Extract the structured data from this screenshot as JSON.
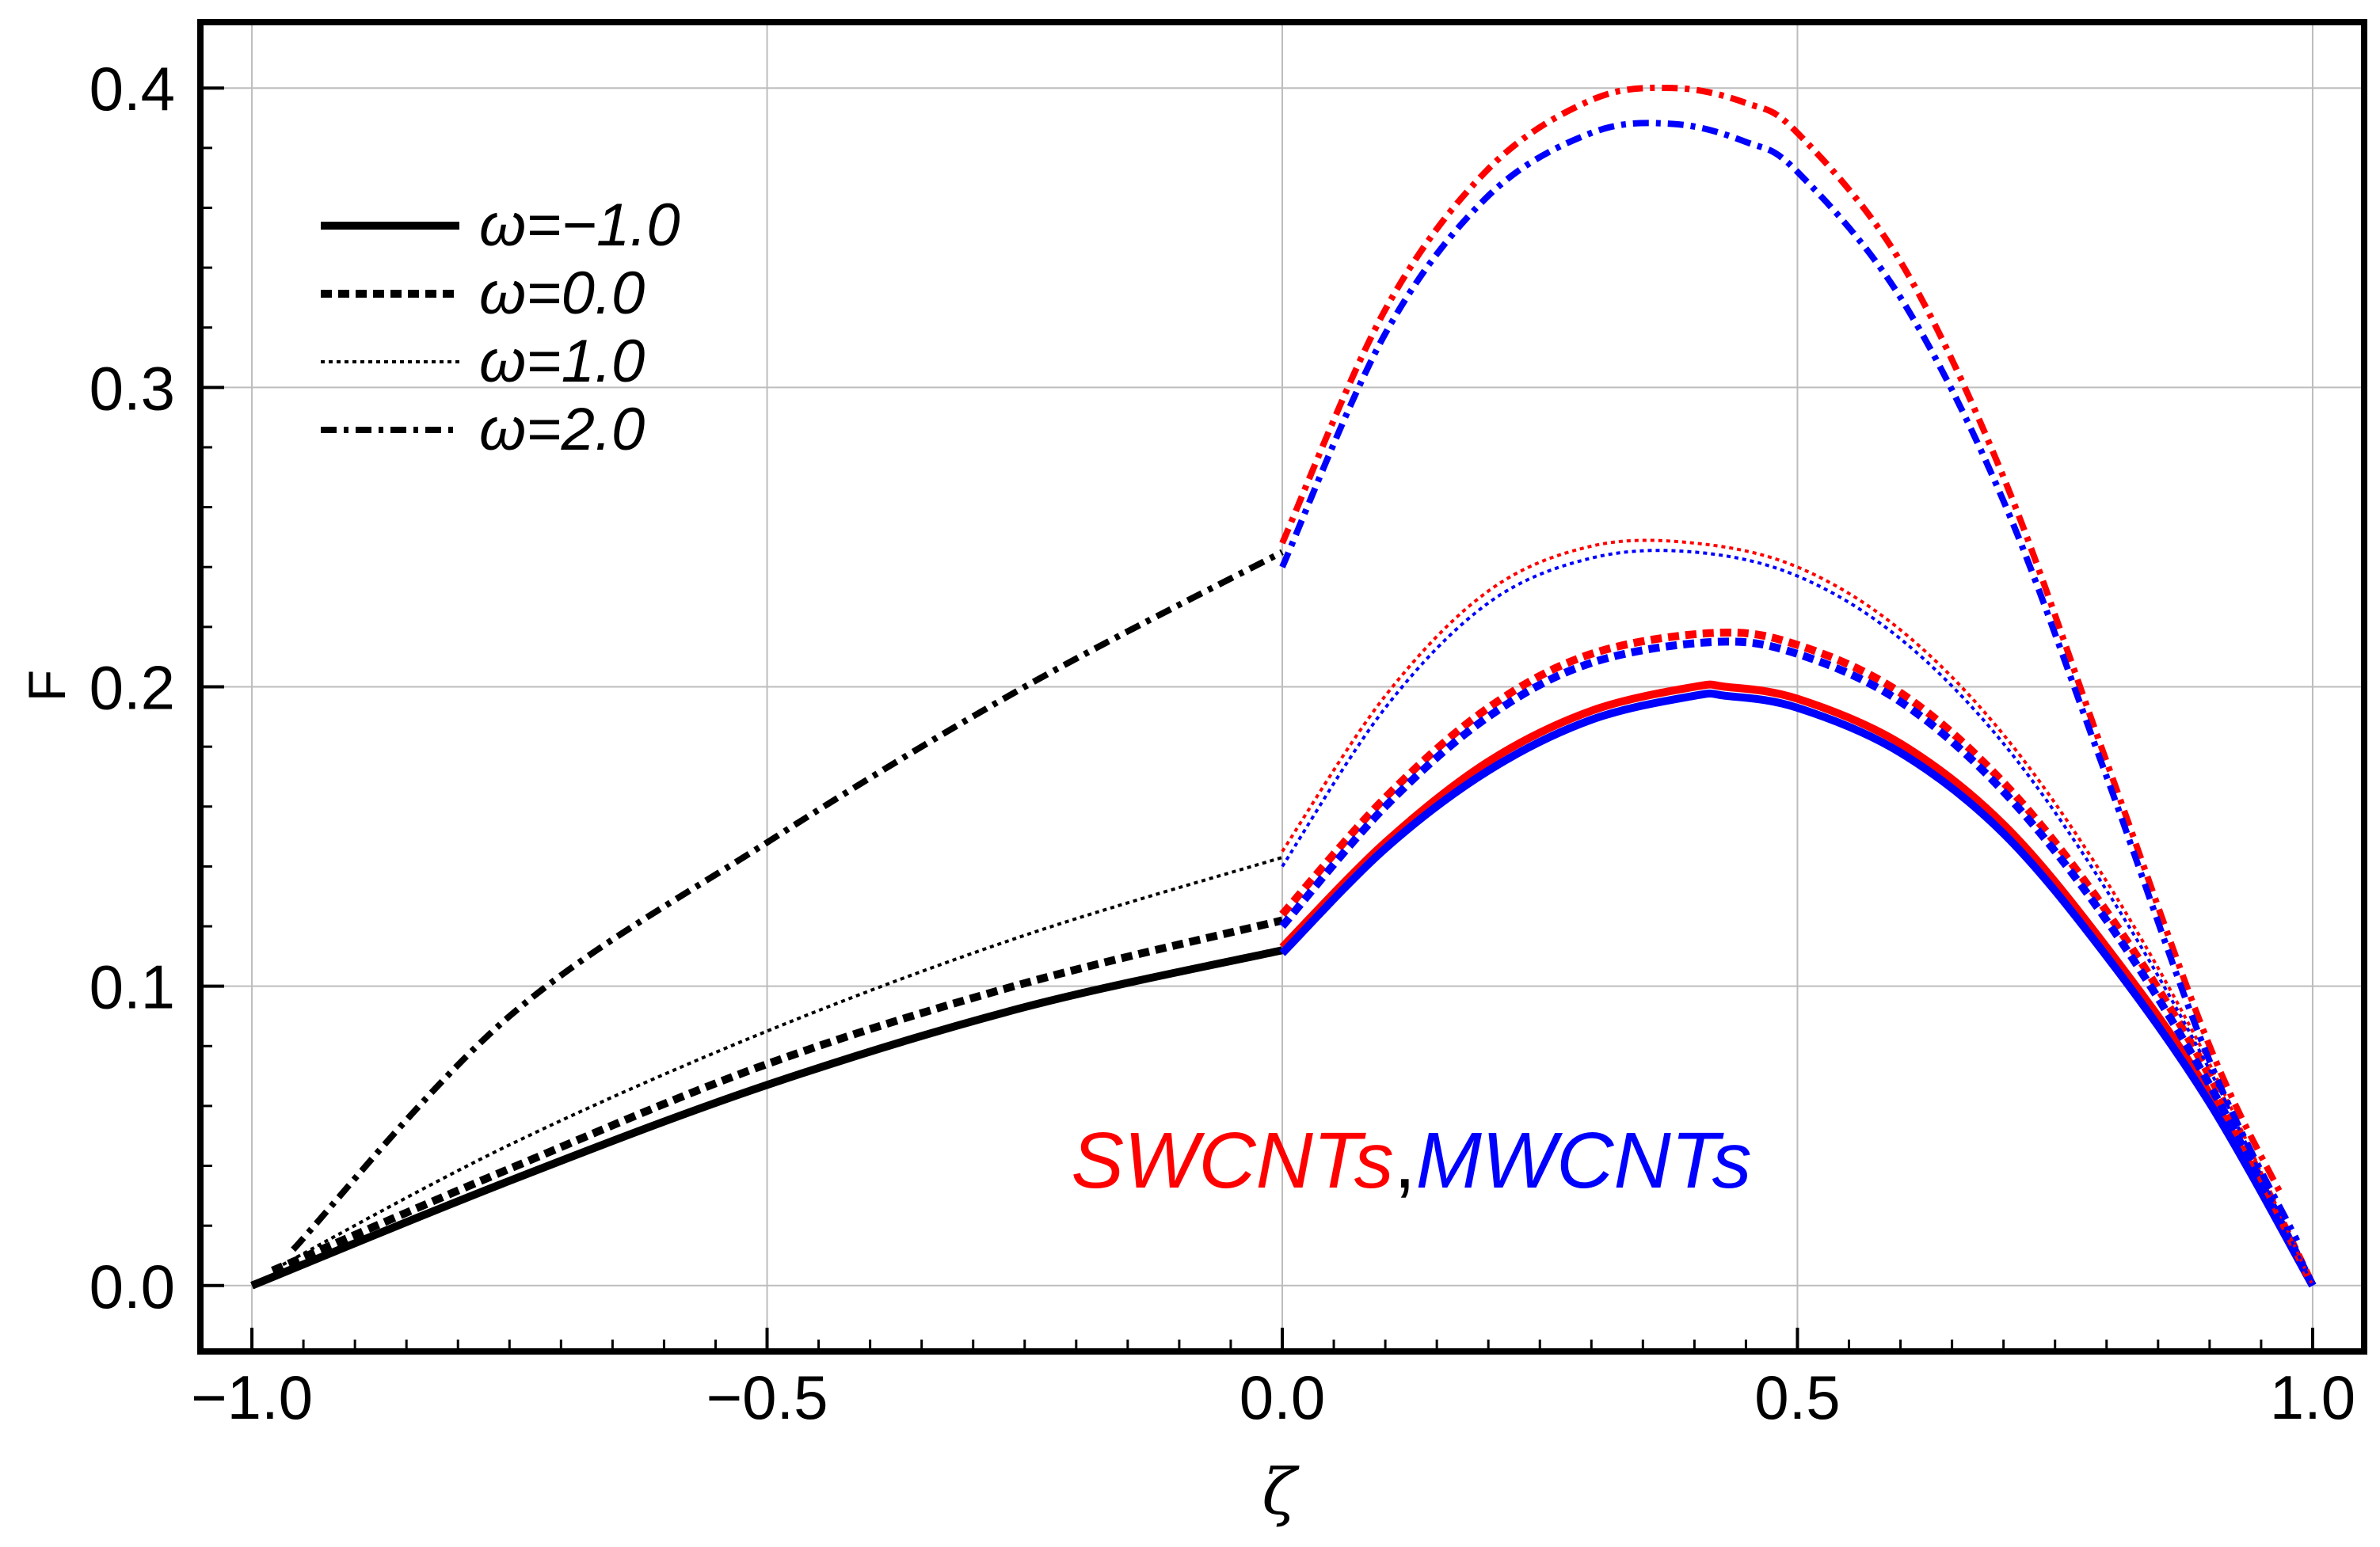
{
  "chart_data": {
    "type": "line",
    "title": "",
    "xlabel": "ζ",
    "ylabel": "F",
    "xlim": [
      -1.05,
      1.05
    ],
    "ylim": [
      -0.022,
      0.422
    ],
    "xticks": [
      -1.0,
      -0.5,
      0.0,
      0.5,
      1.0
    ],
    "xtick_labels": [
      "−1.0",
      "−0.5",
      "0.0",
      "0.5",
      "1.0"
    ],
    "yticks": [
      0.0,
      0.1,
      0.2,
      0.3,
      0.4
    ],
    "ytick_labels": [
      "0.0",
      "0.1",
      "0.2",
      "0.3",
      "0.4"
    ],
    "grid": true,
    "legend": {
      "position": "top-left",
      "entries": [
        {
          "label": "ω=−1.0",
          "style": "solid"
        },
        {
          "label": "ω=0.0",
          "style": "dashed"
        },
        {
          "label": "ω=1.0",
          "style": "dotted"
        },
        {
          "label": "ω=2.0",
          "style": "dashdot"
        }
      ]
    },
    "annotation": {
      "swcnt": "SWCNTs",
      "sep": ",",
      "mwcnt": "MWCNTs"
    },
    "colors": {
      "left": "#000000",
      "swcnt": "#ff0000",
      "mwcnt": "#0000ff"
    },
    "series": [
      {
        "name": "ω=−1.0 left",
        "omega": -1.0,
        "region": "left",
        "color": "#000000",
        "style": "solid",
        "x": [
          -1.0,
          -0.75,
          -0.5,
          -0.25,
          0.0
        ],
        "y": [
          0.0,
          0.035,
          0.067,
          0.093,
          0.112
        ]
      },
      {
        "name": "ω=0.0 left",
        "omega": 0.0,
        "region": "left",
        "color": "#000000",
        "style": "dashed",
        "x": [
          -0.98,
          -0.75,
          -0.5,
          -0.25,
          0.0
        ],
        "y": [
          0.005,
          0.039,
          0.074,
          0.101,
          0.122
        ]
      },
      {
        "name": "ω=1.0 left",
        "omega": 1.0,
        "region": "left",
        "color": "#000000",
        "style": "dotted",
        "x": [
          -0.97,
          -0.75,
          -0.5,
          -0.25,
          0.0
        ],
        "y": [
          0.007,
          0.047,
          0.085,
          0.117,
          0.143
        ]
      },
      {
        "name": "ω=2.0 left",
        "omega": 2.0,
        "region": "left",
        "color": "#000000",
        "style": "dashdot",
        "x": [
          -0.96,
          -0.75,
          -0.5,
          -0.25,
          0.0
        ],
        "y": [
          0.012,
          0.09,
          0.148,
          0.2,
          0.245
        ]
      },
      {
        "name": "ω=−1.0 SWCNTs",
        "omega": -1.0,
        "region": "right",
        "color": "#ff0000",
        "style": "solid",
        "x": [
          0.0,
          0.1,
          0.2,
          0.3,
          0.4,
          0.43,
          0.5,
          0.6,
          0.7,
          0.8,
          0.9,
          1.0
        ],
        "y": [
          0.113,
          0.148,
          0.175,
          0.192,
          0.2,
          0.2,
          0.196,
          0.181,
          0.154,
          0.113,
          0.064,
          0.0
        ]
      },
      {
        "name": "ω=−1.0 MWCNTs",
        "omega": -1.0,
        "region": "right",
        "color": "#0000ff",
        "style": "solid",
        "x": [
          0.0,
          0.1,
          0.2,
          0.3,
          0.4,
          0.43,
          0.5,
          0.6,
          0.7,
          0.8,
          0.9,
          1.0
        ],
        "y": [
          0.111,
          0.146,
          0.172,
          0.189,
          0.197,
          0.197,
          0.193,
          0.178,
          0.151,
          0.11,
          0.061,
          0.0
        ]
      },
      {
        "name": "ω=0.0 SWCNTs",
        "omega": 0.0,
        "region": "right",
        "color": "#ff0000",
        "style": "dashed",
        "x": [
          0.0,
          0.1,
          0.2,
          0.3,
          0.42,
          0.5,
          0.6,
          0.7,
          0.8,
          0.9,
          1.0
        ],
        "y": [
          0.124,
          0.163,
          0.193,
          0.211,
          0.218,
          0.214,
          0.198,
          0.168,
          0.125,
          0.07,
          0.0
        ]
      },
      {
        "name": "ω=0.0 MWCNTs",
        "omega": 0.0,
        "region": "right",
        "color": "#0000ff",
        "style": "dashed",
        "x": [
          0.0,
          0.1,
          0.2,
          0.3,
          0.42,
          0.5,
          0.6,
          0.7,
          0.8,
          0.9,
          1.0
        ],
        "y": [
          0.12,
          0.16,
          0.19,
          0.208,
          0.215,
          0.211,
          0.195,
          0.165,
          0.122,
          0.067,
          0.0
        ]
      },
      {
        "name": "ω=1.0 SWCNTs",
        "omega": 1.0,
        "region": "right",
        "color": "#ff0000",
        "style": "dotted",
        "x": [
          0.0,
          0.1,
          0.2,
          0.3,
          0.4,
          0.5,
          0.6,
          0.7,
          0.8,
          0.9,
          1.0
        ],
        "y": [
          0.145,
          0.197,
          0.232,
          0.247,
          0.248,
          0.24,
          0.219,
          0.184,
          0.135,
          0.074,
          0.0
        ]
      },
      {
        "name": "ω=1.0 MWCNTs",
        "omega": 1.0,
        "region": "right",
        "color": "#0000ff",
        "style": "dotted",
        "x": [
          0.0,
          0.1,
          0.2,
          0.3,
          0.4,
          0.5,
          0.6,
          0.7,
          0.8,
          0.9,
          1.0
        ],
        "y": [
          0.14,
          0.193,
          0.228,
          0.243,
          0.245,
          0.237,
          0.216,
          0.181,
          0.132,
          0.072,
          0.0
        ]
      },
      {
        "name": "ω=2.0 SWCNTs",
        "omega": 2.0,
        "region": "right",
        "color": "#ff0000",
        "style": "dashdot",
        "x": [
          0.0,
          0.1,
          0.2,
          0.3,
          0.38,
          0.45,
          0.5,
          0.6,
          0.7,
          0.8,
          0.9,
          0.97
        ],
        "y": [
          0.248,
          0.326,
          0.373,
          0.396,
          0.4,
          0.395,
          0.385,
          0.342,
          0.27,
          0.175,
          0.08,
          0.03
        ]
      },
      {
        "name": "ω=2.0 MWCNTs",
        "omega": 2.0,
        "region": "right",
        "color": "#0000ff",
        "style": "dashdot",
        "x": [
          0.0,
          0.1,
          0.2,
          0.3,
          0.38,
          0.45,
          0.5,
          0.6,
          0.7,
          0.8,
          0.9,
          0.985
        ],
        "y": [
          0.24,
          0.318,
          0.364,
          0.385,
          0.388,
          0.382,
          0.372,
          0.33,
          0.262,
          0.17,
          0.075,
          0.015
        ]
      }
    ]
  }
}
